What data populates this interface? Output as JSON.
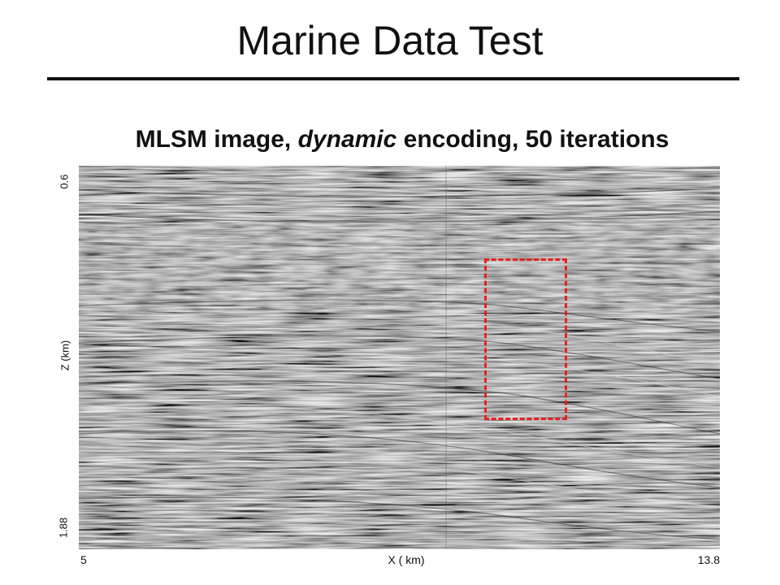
{
  "slide": {
    "title": "Marine Data Test"
  },
  "figure": {
    "subtitle_part1": "MLSM image, ",
    "subtitle_emphasis": "dynamic",
    "subtitle_part2": " encoding, 50 iterations",
    "image_description_icon": "seismic-image",
    "highlight_color": "#e8201f",
    "y_axis": {
      "label": "Z (km)",
      "tick_top": "0.6",
      "tick_bottom": "1.88"
    },
    "x_axis": {
      "label": "X ( km)",
      "tick_left": "5",
      "tick_right": "13.8"
    }
  }
}
